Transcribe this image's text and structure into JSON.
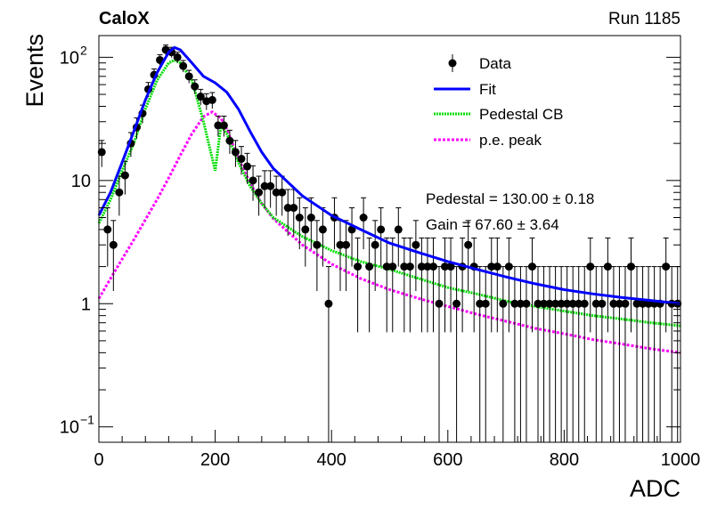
{
  "chart_data": {
    "type": "scatter",
    "title_left": "CaloX",
    "title_right": "Run 1185",
    "xlabel": "ADC",
    "ylabel": "Events",
    "xlim": [
      0,
      1000
    ],
    "ylim": [
      0.075,
      150
    ],
    "yscale": "log",
    "grid": false,
    "legend_position": "top-right",
    "x_ticks": [
      0,
      200,
      400,
      600,
      800,
      1000
    ],
    "x_tick_labels": [
      "0",
      "200",
      "400",
      "600",
      "800",
      "1000"
    ],
    "y_ticks": [
      0.1,
      1,
      10,
      100
    ],
    "legend": [
      {
        "name": "Data",
        "color": "#000000",
        "style": "marker"
      },
      {
        "name": "Fit",
        "color": "#0000ff",
        "style": "solid"
      },
      {
        "name": "Pedestal CB",
        "color": "#00dd00",
        "style": "dotted"
      },
      {
        "name": "p.e. peak",
        "color": "#ff00ff",
        "style": "dotted"
      }
    ],
    "annotations": [
      "Pedestal = 130.00 ± 0.18",
      "Gain = 67.60 ± 3.64"
    ],
    "series": [
      {
        "name": "Data",
        "x": [
          5,
          15,
          25,
          35,
          45,
          55,
          65,
          75,
          85,
          95,
          105,
          115,
          125,
          135,
          145,
          155,
          165,
          175,
          185,
          195,
          205,
          215,
          225,
          235,
          245,
          255,
          265,
          275,
          285,
          295,
          305,
          315,
          325,
          335,
          345,
          355,
          365,
          375,
          385,
          395,
          405,
          415,
          425,
          435,
          445,
          455,
          465,
          475,
          485,
          495,
          505,
          515,
          525,
          535,
          545,
          555,
          565,
          575,
          585,
          595,
          605,
          615,
          625,
          635,
          645,
          655,
          665,
          675,
          685,
          695,
          705,
          715,
          725,
          735,
          745,
          755,
          765,
          775,
          785,
          795,
          805,
          815,
          825,
          835,
          845,
          855,
          865,
          875,
          885,
          895,
          905,
          915,
          925,
          935,
          945,
          955,
          965,
          975,
          985,
          995
        ],
        "y": [
          17,
          4,
          3,
          8,
          11,
          20,
          27,
          35,
          55,
          72,
          95,
          115,
          110,
          100,
          85,
          70,
          58,
          48,
          44,
          45,
          28,
          28,
          21,
          17,
          15,
          13,
          10,
          8,
          9,
          9,
          8,
          8,
          6,
          6,
          5,
          4,
          5,
          3,
          4,
          1,
          5,
          3,
          3,
          4,
          2,
          5,
          2,
          3,
          4,
          2,
          2,
          4,
          2,
          2,
          3,
          2,
          2,
          2,
          1,
          2,
          2,
          1,
          2,
          3,
          2,
          1,
          1,
          2,
          2,
          1,
          2,
          1,
          1,
          1,
          2,
          1,
          1,
          1,
          1,
          1,
          1,
          1,
          1,
          1,
          2,
          1,
          1,
          2,
          1,
          1,
          1,
          2,
          1,
          1,
          1,
          1,
          1,
          2,
          1,
          1
        ]
      },
      {
        "name": "Fit",
        "x": [
          0,
          20,
          40,
          60,
          80,
          100,
          120,
          130,
          140,
          160,
          180,
          200,
          220,
          240,
          260,
          280,
          300,
          350,
          400,
          450,
          500,
          550,
          600,
          650,
          700,
          750,
          800,
          850,
          900,
          950,
          1000
        ],
        "y": [
          5.2,
          8,
          14,
          25,
          45,
          75,
          110,
          120,
          115,
          90,
          70,
          62,
          52,
          38,
          25,
          17,
          12.5,
          7.5,
          5.2,
          4,
          3.1,
          2.6,
          2.2,
          1.9,
          1.65,
          1.45,
          1.3,
          1.2,
          1.12,
          1.06,
          1.0
        ]
      },
      {
        "name": "Pedestal CB",
        "x": [
          0,
          20,
          40,
          60,
          80,
          100,
          120,
          130,
          140,
          160,
          180,
          200,
          210,
          220,
          240,
          260,
          280,
          300,
          350,
          400,
          450,
          500,
          550,
          600,
          650,
          700,
          750,
          800,
          850,
          900,
          950,
          1000
        ],
        "y": [
          4.5,
          7,
          12,
          20,
          38,
          65,
          90,
          95,
          90,
          65,
          30,
          12,
          28,
          24,
          14,
          9,
          6.5,
          5,
          3.5,
          2.7,
          2.2,
          1.9,
          1.6,
          1.35,
          1.2,
          1.05,
          0.95,
          0.87,
          0.8,
          0.75,
          0.7,
          0.66
        ]
      },
      {
        "name": "p.e. peak",
        "x": [
          0,
          20,
          40,
          60,
          80,
          100,
          120,
          140,
          160,
          180,
          195,
          210,
          220,
          240,
          260,
          280,
          300,
          350,
          400,
          450,
          500,
          550,
          600,
          650,
          700,
          750,
          800,
          850,
          900,
          950,
          1000
        ],
        "y": [
          1.1,
          1.6,
          2.3,
          3.3,
          4.8,
          7,
          10.5,
          16,
          24,
          33,
          36,
          32,
          26,
          15,
          9.5,
          6.5,
          4.9,
          3,
          2.1,
          1.6,
          1.3,
          1.1,
          0.95,
          0.82,
          0.72,
          0.63,
          0.57,
          0.51,
          0.47,
          0.43,
          0.4
        ]
      }
    ]
  }
}
